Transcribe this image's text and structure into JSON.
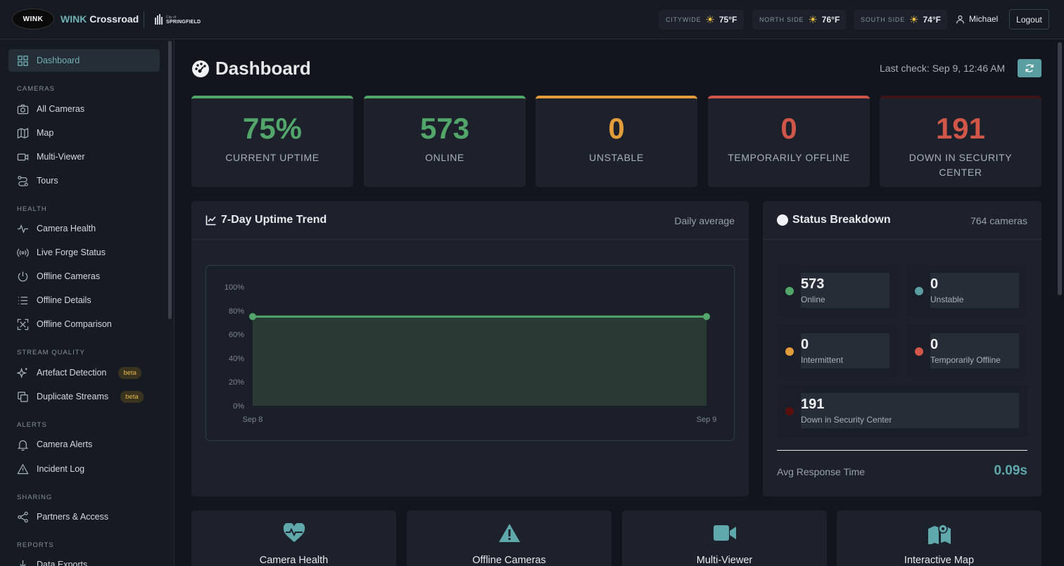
{
  "header": {
    "logo_text": "WINK",
    "brand_w": "WINK",
    "brand_rest": " Crossroad",
    "city_small": "City of",
    "city_big": "SPRINGFIELD",
    "weather": [
      {
        "label": "CITYWIDE",
        "temp": "75°F",
        "icon": "sun-icon"
      },
      {
        "label": "NORTH SIDE",
        "temp": "76°F",
        "icon": "sun-icon"
      },
      {
        "label": "SOUTH SIDE",
        "temp": "74°F",
        "icon": "sun-icon"
      }
    ],
    "user": "Michael",
    "logout_label": "Logout"
  },
  "sidebar": {
    "items": [
      {
        "label": "Dashboard",
        "icon": "grid-icon",
        "active": true
      },
      {
        "label": "All Cameras",
        "icon": "camera-icon"
      },
      {
        "label": "Map",
        "icon": "map-icon"
      },
      {
        "label": "Multi-Viewer",
        "icon": "video-icon"
      },
      {
        "label": "Tours",
        "icon": "route-icon"
      },
      {
        "label": "Camera Health",
        "icon": "pulse-icon"
      },
      {
        "label": "Live Forge Status",
        "icon": "broadcast-icon"
      },
      {
        "label": "Offline Cameras",
        "icon": "power-icon"
      },
      {
        "label": "Offline Details",
        "icon": "list-icon"
      },
      {
        "label": "Offline Comparison",
        "icon": "compare-icon"
      },
      {
        "label": "Artefact Detection",
        "icon": "sparkle-icon",
        "badge": "beta"
      },
      {
        "label": "Duplicate Streams",
        "icon": "copy-icon",
        "badge": "beta"
      },
      {
        "label": "Camera Alerts",
        "icon": "bell-icon"
      },
      {
        "label": "Incident Log",
        "icon": "warning-icon"
      },
      {
        "label": "Partners & Access",
        "icon": "share-icon"
      },
      {
        "label": "Data Exports",
        "icon": "download-icon"
      }
    ],
    "sections": [
      "CAMERAS",
      "HEALTH",
      "STREAM QUALITY",
      "ALERTS",
      "SHARING",
      "REPORTS"
    ]
  },
  "main": {
    "title": "Dashboard",
    "last_check": "Last check: Sep 9, 12:46 AM",
    "stats": [
      {
        "value": "75%",
        "label": "CURRENT UPTIME",
        "color": "#52a66a"
      },
      {
        "value": "573",
        "label": "ONLINE",
        "color": "#52a66a"
      },
      {
        "value": "0",
        "label": "UNSTABLE",
        "color": "#e39c3c"
      },
      {
        "value": "0",
        "label": "TEMPORARILY OFFLINE",
        "color": "#cf5648"
      },
      {
        "value": "191",
        "label": "DOWN IN SECURITY CENTER",
        "color": "#cf5648"
      }
    ],
    "trend": {
      "title": "7-Day Uptime Trend",
      "subtitle": "Daily average"
    },
    "breakdown": {
      "title": "Status Breakdown",
      "subtitle": "764 cameras",
      "items": [
        {
          "value": "573",
          "label": "Online",
          "color": "#52a66a"
        },
        {
          "value": "0",
          "label": "Unstable",
          "color": "#5b9ea2"
        },
        {
          "value": "0",
          "label": "Intermittent",
          "color": "#e39c3c"
        },
        {
          "value": "0",
          "label": "Temporarily Offline",
          "color": "#cf5648"
        },
        {
          "value": "191",
          "label": "Down in Security Center",
          "color": "#5a0f0f"
        }
      ],
      "avg_label": "Avg Response Time",
      "avg_value": "0.09s"
    },
    "quick_links": [
      {
        "label": "Camera Health",
        "icon": "heart-pulse-icon"
      },
      {
        "label": "Offline Cameras",
        "icon": "warning-icon"
      },
      {
        "label": "Multi-Viewer",
        "icon": "video-icon"
      },
      {
        "label": "Interactive Map",
        "icon": "map-pin-icon"
      }
    ]
  },
  "chart_data": {
    "type": "area",
    "x": [
      "Sep 8",
      "Sep 9"
    ],
    "series": [
      {
        "values": [
          75,
          75
        ]
      }
    ],
    "y_ticks": [
      "0%",
      "20%",
      "40%",
      "60%",
      "80%",
      "100%"
    ],
    "ylim": [
      0,
      100
    ],
    "color": "#52a66a",
    "grid": false
  }
}
